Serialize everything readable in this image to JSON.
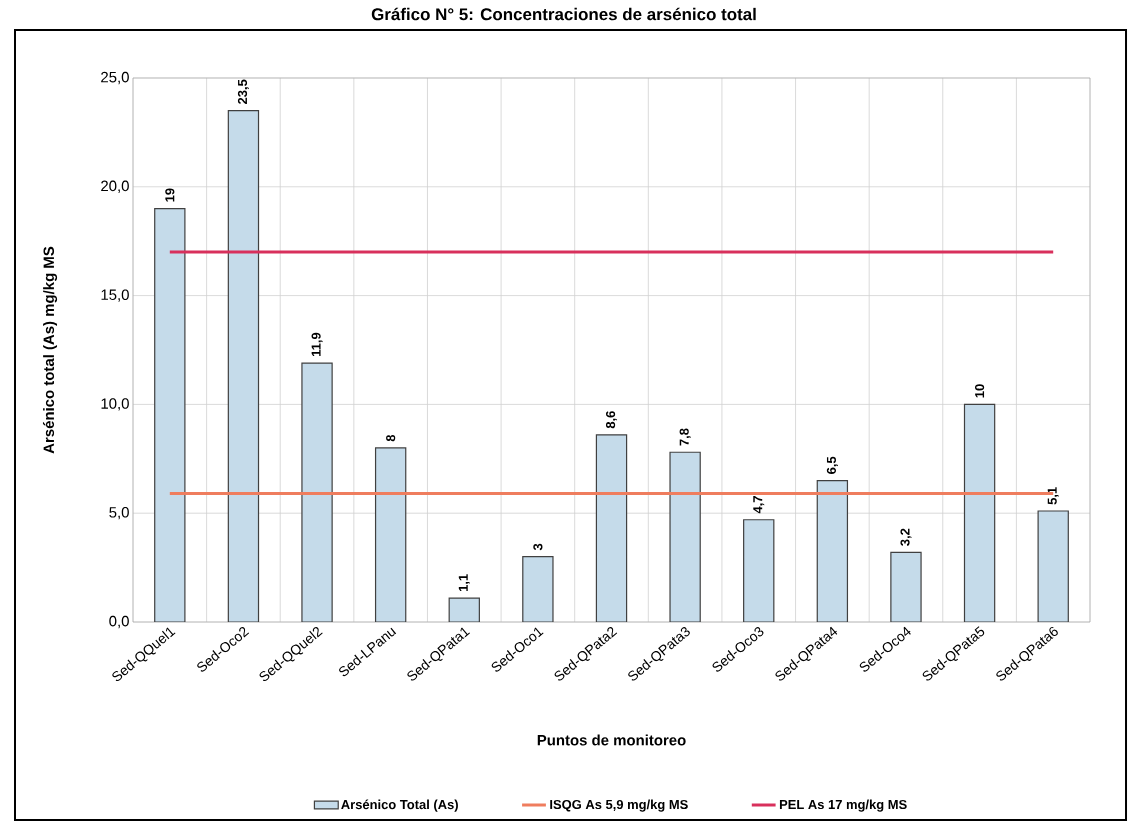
{
  "chart_data": {
    "type": "bar",
    "title": "Gráfico N° 5: Concentraciones de arsénico total",
    "xlabel": "Puntos de monitoreo",
    "ylabel": "Arsénico total  (As)  mg/kg MS",
    "categories": [
      "Sed-QQuel1",
      "Sed-Oco2",
      "Sed-QQuel2",
      "Sed-LPanu",
      "Sed-QPata1",
      "Sed-Oco1",
      "Sed-QPata2",
      "Sed-QPata3",
      "Sed-Oco3",
      "Sed-QPata4",
      "Sed-Oco4",
      "Sed-QPata5",
      "Sed-QPata6"
    ],
    "series": [
      {
        "name": "Arsénico Total (As)",
        "color": "#c5dbea",
        "values": [
          19,
          23.5,
          11.9,
          8,
          1.1,
          3,
          8.6,
          7.8,
          4.7,
          6.5,
          3.2,
          10,
          5.1
        ],
        "value_labels": [
          "19",
          "23,5",
          "11,9",
          "8",
          "1,1",
          "3",
          "8,6",
          "7,8",
          "4,7",
          "6,5",
          "3,2",
          "10",
          "5,1"
        ]
      }
    ],
    "ylim": [
      0,
      25
    ],
    "yticks": [
      {
        "value": 0,
        "label": "0,0"
      },
      {
        "value": 5,
        "label": "5,0"
      },
      {
        "value": 10,
        "label": "10,0"
      },
      {
        "value": 15,
        "label": "15,0"
      },
      {
        "value": 20,
        "label": "20,0"
      },
      {
        "value": 25,
        "label": "25,0"
      }
    ],
    "grid": true,
    "legend": "bottom",
    "ref_lines": [
      {
        "axis": "y",
        "value": 5.9,
        "label": "ISQG As  5,9 mg/kg MS",
        "color": "#ef7d5e"
      },
      {
        "axis": "y",
        "value": 17,
        "label": "PEL  As  17 mg/kg MS",
        "color": "#d8305c"
      }
    ]
  }
}
